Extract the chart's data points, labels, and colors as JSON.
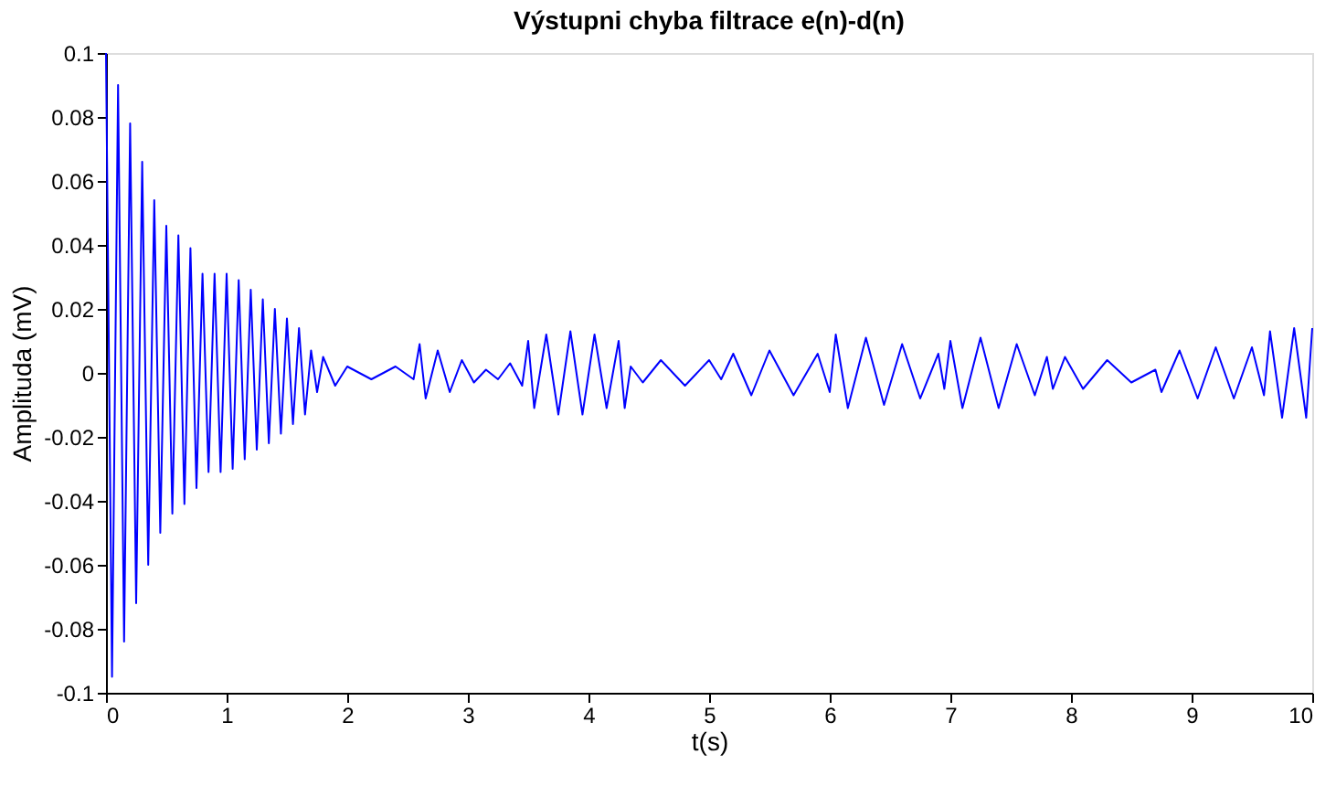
{
  "chart_data": {
    "type": "line",
    "title": "Výstupni chyba filtrace e(n)-d(n)",
    "xlabel": "t(s)",
    "ylabel": "Amplituda (mV)",
    "x": [
      0,
      0.05,
      0.1,
      0.15,
      0.2,
      0.25,
      0.3,
      0.35,
      0.4,
      0.45,
      0.5,
      0.55,
      0.6,
      0.65,
      0.7,
      0.75,
      0.8,
      0.85,
      0.9,
      0.95,
      1.0,
      1.05,
      1.1,
      1.15,
      1.2,
      1.25,
      1.3,
      1.35,
      1.4,
      1.45,
      1.5,
      1.55,
      1.6,
      1.65,
      1.7,
      1.75,
      1.8,
      1.9,
      2.0,
      2.2,
      2.4,
      2.55,
      2.6,
      2.65,
      2.75,
      2.85,
      2.95,
      3.05,
      3.15,
      3.25,
      3.35,
      3.45,
      3.5,
      3.55,
      3.65,
      3.75,
      3.85,
      3.95,
      4.05,
      4.15,
      4.25,
      4.3,
      4.35,
      4.45,
      4.6,
      4.8,
      5.0,
      5.1,
      5.2,
      5.35,
      5.5,
      5.7,
      5.9,
      6.0,
      6.05,
      6.15,
      6.3,
      6.45,
      6.6,
      6.75,
      6.9,
      6.95,
      7.0,
      7.1,
      7.25,
      7.4,
      7.55,
      7.7,
      7.8,
      7.85,
      7.95,
      8.1,
      8.3,
      8.5,
      8.7,
      8.75,
      8.9,
      9.05,
      9.2,
      9.35,
      9.5,
      9.6,
      9.65,
      9.75,
      9.85,
      9.95,
      10
    ],
    "series": [
      {
        "color": "#0000ff",
        "values": [
          0.1,
          -0.095,
          0.09,
          -0.084,
          0.078,
          -0.072,
          0.066,
          -0.06,
          0.054,
          -0.05,
          0.046,
          -0.044,
          0.043,
          -0.041,
          0.039,
          -0.036,
          0.031,
          -0.031,
          0.031,
          -0.031,
          0.031,
          -0.03,
          0.029,
          -0.027,
          0.026,
          -0.024,
          0.023,
          -0.022,
          0.02,
          -0.019,
          0.017,
          -0.016,
          0.014,
          -0.013,
          0.007,
          -0.006,
          0.005,
          -0.004,
          0.002,
          -0.002,
          0.002,
          -0.002,
          0.009,
          -0.008,
          0.007,
          -0.006,
          0.004,
          -0.003,
          0.001,
          -0.002,
          0.003,
          -0.004,
          0.01,
          -0.011,
          0.012,
          -0.013,
          0.013,
          -0.013,
          0.012,
          -0.011,
          0.01,
          -0.011,
          0.002,
          -0.003,
          0.004,
          -0.004,
          0.004,
          -0.002,
          0.006,
          -0.007,
          0.007,
          -0.007,
          0.006,
          -0.006,
          0.012,
          -0.011,
          0.011,
          -0.01,
          0.009,
          -0.008,
          0.006,
          -0.005,
          0.01,
          -0.011,
          0.011,
          -0.011,
          0.009,
          -0.007,
          0.005,
          -0.005,
          0.005,
          -0.005,
          0.004,
          -0.003,
          0.001,
          -0.006,
          0.007,
          -0.008,
          0.008,
          -0.008,
          0.008,
          -0.007,
          0.013,
          -0.014,
          0.014,
          -0.014,
          0.014
        ]
      }
    ],
    "xlim": [
      0,
      10
    ],
    "xticks": [
      0,
      1,
      2,
      3,
      4,
      5,
      6,
      7,
      8,
      9,
      10
    ],
    "ylim": [
      -0.1,
      0.1
    ],
    "yticks": [
      -0.1,
      -0.08,
      -0.06,
      -0.04,
      -0.02,
      0,
      0.02,
      0.04,
      0.06,
      0.08,
      0.1
    ],
    "grid": false,
    "marker": "none",
    "line_style": "solid"
  }
}
